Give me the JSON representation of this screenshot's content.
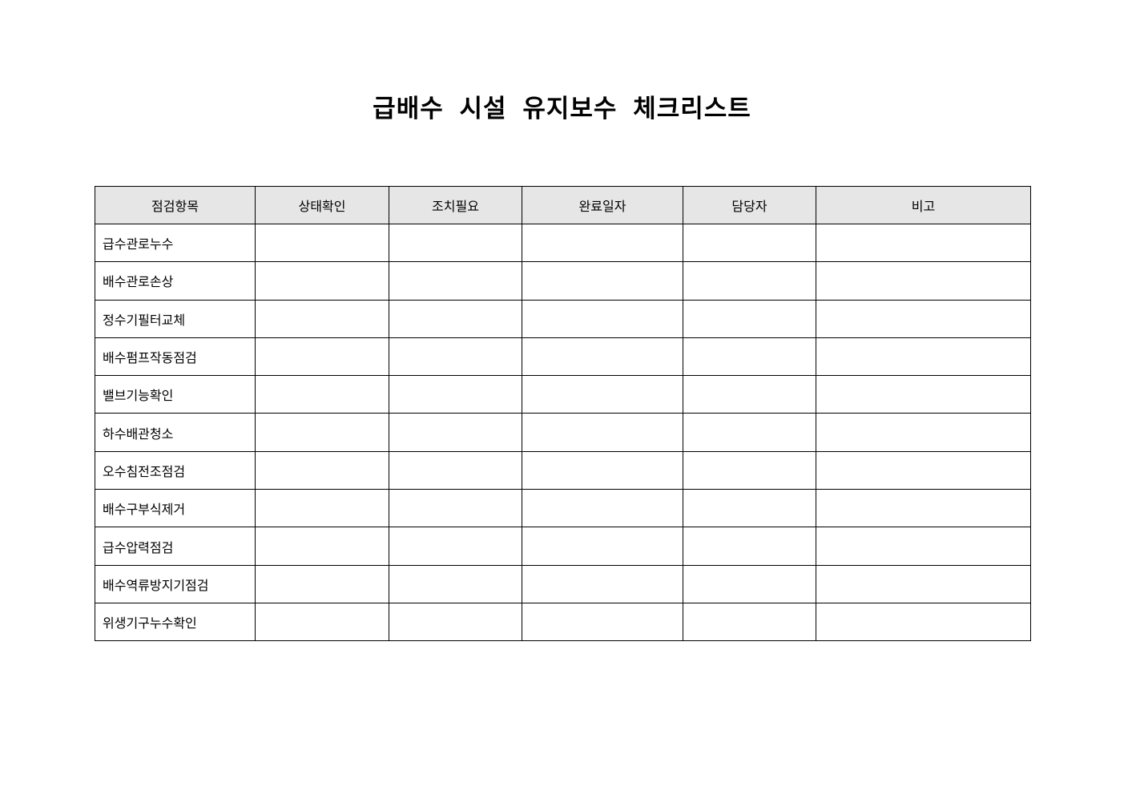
{
  "title": "급배수 시설 유지보수 체크리스트",
  "table": {
    "headers": [
      "점검항목",
      "상태확인",
      "조치필요",
      "완료일자",
      "담당자",
      "비고"
    ],
    "rows": [
      "급수관로누수",
      "배수관로손상",
      "정수기필터교체",
      "배수펌프작동점검",
      "밸브기능확인",
      "하수배관청소",
      "오수침전조점검",
      "배수구부식제거",
      "급수압력점검",
      "배수역류방지기점검",
      "위생기구누수확인"
    ]
  },
  "colors": {
    "header_bg": "#e6e6e6",
    "border": "#000000"
  }
}
